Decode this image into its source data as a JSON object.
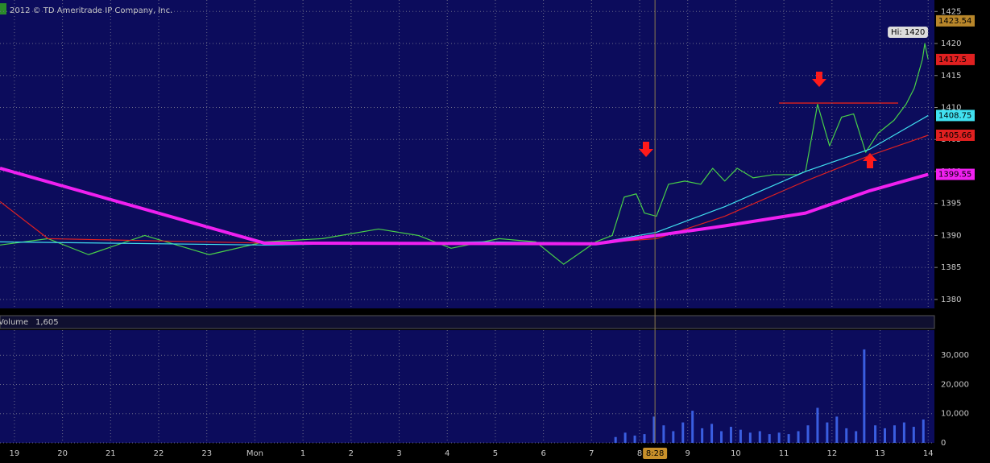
{
  "copyright": "2012 © TD Ameritrade IP Company, Inc.",
  "volume_label": "Volume",
  "volume_value": "1,605",
  "cursor_label": "8:28",
  "chart_data": [
    {
      "type": "line",
      "hi_label": "Hi: 1420",
      "xlim": [
        -0.3,
        19.13
      ],
      "ylim": [
        1378.6,
        1426.8
      ],
      "yticks": [
        1380,
        1385,
        1390,
        1395,
        1400,
        1405,
        1410,
        1415,
        1420,
        1425
      ],
      "grid": true,
      "price_tags": [
        {
          "value": 1423.54,
          "color": "#b8862a"
        },
        {
          "value": 1417.5,
          "color": "#e02020"
        },
        {
          "value": 1408.75,
          "color": "#40e0f0"
        },
        {
          "value": 1405.66,
          "color": "#e02020"
        },
        {
          "value": 1399.55,
          "color": "#f020f0"
        }
      ],
      "series": [
        {
          "color": "#48d048",
          "width": 1.2,
          "x": [
            -0.3,
            0.7,
            1.54,
            2.71,
            4.05,
            5.2,
            6.4,
            7.57,
            8.4,
            9.08,
            10.08,
            10.84,
            11.42,
            12.09,
            12.43,
            12.68,
            12.93,
            13.1,
            13.35,
            13.6,
            13.94,
            14.27,
            14.52,
            14.77,
            15.03,
            15.36,
            15.78,
            16.28,
            16.45,
            16.7,
            16.95,
            17.2,
            17.45,
            17.7,
            17.96,
            18.29,
            18.54,
            18.71,
            18.88,
            18.93,
            19.0
          ],
          "values": [
            1388.5,
            1389.5,
            1387,
            1390,
            1387,
            1389,
            1389.5,
            1391,
            1390,
            1388,
            1389.5,
            1389,
            1385.5,
            1389,
            1390,
            1396,
            1396.5,
            1393.5,
            1393,
            1398,
            1398.5,
            1398,
            1400.5,
            1398.5,
            1400.5,
            1399,
            1399.5,
            1399.5,
            1400,
            1410.5,
            1404,
            1408.5,
            1409,
            1403,
            1406,
            1408,
            1410.5,
            1413,
            1417.5,
            1420,
            1417.5
          ]
        },
        {
          "color": "#40e0f0",
          "width": 1.2,
          "x": [
            -0.3,
            5.2,
            9.75,
            12.09,
            13.35,
            14.77,
            16.45,
            17.79,
            19.0
          ],
          "values": [
            1389,
            1388.5,
            1389,
            1388.8,
            1390.5,
            1394.5,
            1400,
            1403.5,
            1408.75
          ]
        },
        {
          "color": "#e02020",
          "width": 1.2,
          "x": [
            -0.3,
            0.7,
            5.2,
            12.09,
            13.35,
            14.77,
            16.45,
            17.79,
            19.0
          ],
          "values": [
            1395.3,
            1389.5,
            1388.8,
            1388.8,
            1389.5,
            1393,
            1398.5,
            1402.5,
            1405.66
          ]
        },
        {
          "color": "#f020f0",
          "width": 4,
          "x": [
            -0.3,
            5.2,
            12.09,
            13.35,
            14.77,
            16.45,
            17.79,
            19.0
          ],
          "values": [
            1400.5,
            1388.8,
            1388.7,
            1390,
            1391.5,
            1393.5,
            1397,
            1399.55
          ]
        }
      ]
    },
    {
      "type": "bar",
      "color": "#3a5ee0",
      "xlim": [
        -0.3,
        19.13
      ],
      "ylim": [
        0,
        38600
      ],
      "yticks": [
        0,
        {
          "value": 10000,
          "label": "10,000"
        },
        {
          "value": 20000,
          "label": "20,000"
        },
        {
          "value": 30000,
          "label": "30,000"
        }
      ],
      "xticks": [
        {
          "value": 0,
          "label": "19"
        },
        {
          "value": 1,
          "label": "20"
        },
        {
          "value": 2,
          "label": "21"
        },
        {
          "value": 3,
          "label": "22"
        },
        {
          "value": 4,
          "label": "23"
        },
        {
          "value": 5,
          "label": "Mon"
        },
        {
          "value": 6,
          "label": "1"
        },
        {
          "value": 7,
          "label": "2"
        },
        {
          "value": 8,
          "label": "3"
        },
        {
          "value": 9,
          "label": "4"
        },
        {
          "value": 10,
          "label": "5"
        },
        {
          "value": 11,
          "label": "6"
        },
        {
          "value": 12,
          "label": "7"
        },
        {
          "value": 13,
          "label": "8"
        },
        {
          "value": 14,
          "label": "9"
        },
        {
          "value": 15,
          "label": "10"
        },
        {
          "value": 16,
          "label": "11"
        },
        {
          "value": 17,
          "label": "12"
        },
        {
          "value": 18,
          "label": "13"
        },
        {
          "value": 19,
          "label": "14"
        }
      ],
      "cursor_x": 13.32,
      "x": [
        12.5,
        12.7,
        12.9,
        13.1,
        13.3,
        13.5,
        13.7,
        13.9,
        14.1,
        14.3,
        14.5,
        14.7,
        14.9,
        15.1,
        15.3,
        15.5,
        15.7,
        15.9,
        16.1,
        16.3,
        16.5,
        16.7,
        16.9,
        17.1,
        17.3,
        17.5,
        17.67,
        17.9,
        18.1,
        18.3,
        18.5,
        18.7,
        18.9
      ],
      "values": [
        2000,
        3500,
        2500,
        3000,
        9000,
        6000,
        4000,
        7000,
        11000,
        5000,
        6500,
        4000,
        5500,
        4500,
        3500,
        4000,
        3000,
        3500,
        3000,
        4000,
        6000,
        12000,
        7000,
        9000,
        5000,
        4000,
        32000,
        6000,
        5000,
        6000,
        7000,
        5500,
        8000
      ]
    }
  ]
}
